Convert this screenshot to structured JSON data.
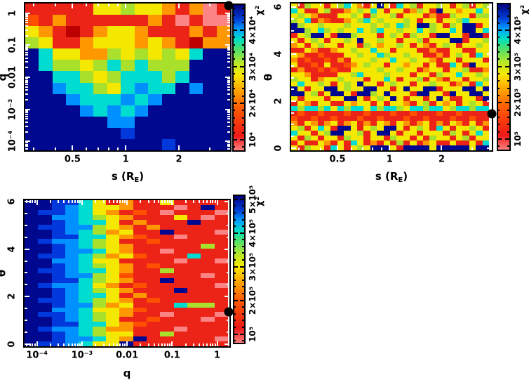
{
  "palette": {
    "0": "#000890",
    "1": "#0038DC",
    "2": "#0090FF",
    "3": "#00DCD0",
    "4": "#38E080",
    "5": "#A8E02C",
    "6": "#F4E800",
    "7": "#FF9800",
    "8": "#FF5000",
    "9": "#EC2418",
    "a": "#FC8484",
    "b": "#BC0000"
  },
  "palette_note": "grid cell characters index palette colors; red = low chi-squared, navy = high chi-squared",
  "colorbar_gradient": [
    [
      0.0,
      "#FC8080"
    ],
    [
      0.1,
      "#F01818"
    ],
    [
      0.3,
      "#FF6000"
    ],
    [
      0.42,
      "#FFA800"
    ],
    [
      0.52,
      "#F8E800"
    ],
    [
      0.6,
      "#B8E828"
    ],
    [
      0.7,
      "#48E070"
    ],
    [
      0.76,
      "#00E0C0"
    ],
    [
      0.83,
      "#00A0FF"
    ],
    [
      0.9,
      "#0040D8"
    ],
    [
      1.0,
      "#000080"
    ]
  ],
  "chart_data": [
    {
      "type": "heatmap",
      "id": "s-q",
      "x_axis": {
        "label_parts": {
          "pre": "s (R",
          "sub": "E",
          "post": ")"
        },
        "scale": "log",
        "min": 0.27,
        "max": 3.9,
        "ticks": [
          {
            "v": 0.5,
            "label": "0.5"
          },
          {
            "v": 1,
            "label": "1"
          },
          {
            "v": 2,
            "label": "2"
          }
        ]
      },
      "y_axis": {
        "label": "q",
        "scale": "log",
        "min": 5.3e-05,
        "max": 2.0,
        "ticks": [
          {
            "v": 1,
            "label": "1"
          },
          {
            "v": 0.1,
            "label": "0.1"
          },
          {
            "v": 0.01,
            "label": "0.01"
          },
          {
            "v": 0.001,
            "label": "10⁻³"
          },
          {
            "v": 0.0001,
            "label": "10⁻⁴"
          }
        ]
      },
      "colorbar": {
        "title": "χ²",
        "min": 7100,
        "max": 46900,
        "ticks": [
          {
            "v": 10000,
            "label": "10⁴"
          },
          {
            "v": 20000,
            "label": "2×10⁴"
          },
          {
            "v": 30000,
            "label": "3×10⁴"
          },
          {
            "v": 40000,
            "label": "4×10⁴"
          }
        ]
      },
      "marker": {
        "x_frac": 0.993,
        "y_frac": 0.014
      },
      "grid": {
        "cols": 15,
        "rows": 13,
        "cells": [
          "9999966566797a9",
          "89799999979a9aa",
          "679b97667999797",
          "569976667679b77",
          "036677565656300",
          "035565353555000",
          "003356533353000",
          "002335632330200",
          "000233323200000",
          "000023232000000",
          "000000220000000",
          "000000010000000",
          "000000000010000"
        ]
      }
    },
    {
      "type": "heatmap",
      "id": "s-theta",
      "x_axis": {
        "label_parts": {
          "pre": "s (R",
          "sub": "E",
          "post": ")"
        },
        "scale": "log",
        "min": 0.27,
        "max": 3.9,
        "ticks": [
          {
            "v": 0.5,
            "label": "0.5"
          },
          {
            "v": 1,
            "label": "1"
          },
          {
            "v": 2,
            "label": "2"
          }
        ]
      },
      "y_axis": {
        "label": "θ",
        "scale": "linear",
        "min": -0.09,
        "max": 6.15,
        "minor_step": 0.5,
        "ticks": [
          {
            "v": 0,
            "label": "0"
          },
          {
            "v": 2,
            "label": "2"
          },
          {
            "v": 4,
            "label": "4"
          },
          {
            "v": 6,
            "label": "6"
          }
        ]
      },
      "colorbar": {
        "title": "χ²",
        "min": 71000,
        "max": 472000,
        "ticks": [
          {
            "v": 100000,
            "label": "10⁵"
          },
          {
            "v": 200000,
            "label": "2×10⁵"
          },
          {
            "v": 300000,
            "label": "3×10⁵"
          },
          {
            "v": 400000,
            "label": "4×10⁵"
          }
        ]
      },
      "marker": {
        "x_frac": 1.0,
        "y_frac": 0.75
      },
      "grid": {
        "cols": 30,
        "rows": 30,
        "cells": [
          "695669653679606936596656965965",
          "369965997656369669756906676636",
          "656799966569566596669799566955",
          "563978997653656665696696653666",
          "056656665666565635600569560096",
          "005635656636536656636566360063",
          "965006900566696569566900669009",
          "696569665606656696659666009665",
          "769656696695676656967965696656",
          "996799766566366966699799669966",
          "679989996656635665669979656936",
          "798998979666566366566796696669",
          "699896998765669667669699369066",
          "979989899666656656697669665997",
          "667999966536665666966956636656",
          "566976656669663696659679669665",
          "636656965606696566966566976936",
          "069660065660066960660096660060",
          "006596006900560666900669066006",
          "696669660069656069669606996690",
          "967966996766969667965967696569",
          "353353635336353356335336533533",
          "989989998998999899899989989999",
          "899899899989989998998999899899",
          "796797697697967967976979679697",
          "659636900696560069656936966569",
          "366965006659600696696669569636",
          "695696695669669566969566965966",
          "969967969369796959697699699693",
          "695669369656000690000600000600"
        ]
      }
    },
    {
      "type": "heatmap",
      "id": "q-theta",
      "x_axis": {
        "label": "q",
        "scale": "log",
        "min": 5.3e-05,
        "max": 1.87,
        "ticks": [
          {
            "v": 0.0001,
            "label": "10⁻⁴"
          },
          {
            "v": 0.001,
            "label": "10⁻³"
          },
          {
            "v": 0.01,
            "label": "0.01"
          },
          {
            "v": 0.1,
            "label": "0.1"
          },
          {
            "v": 1,
            "label": "1"
          }
        ]
      },
      "y_axis": {
        "label": "θ",
        "scale": "linear",
        "min": -0.09,
        "max": 6.06,
        "minor_step": 0.5,
        "ticks": [
          {
            "v": 0,
            "label": "0"
          },
          {
            "v": 2,
            "label": "2"
          },
          {
            "v": 4,
            "label": "4"
          },
          {
            "v": 6,
            "label": "6"
          }
        ]
      },
      "colorbar": {
        "title": "χ²",
        "min": 74000,
        "max": 510000,
        "ticks": [
          {
            "v": 100000,
            "label": "10⁵"
          },
          {
            "v": 200000,
            "label": "2×10⁵"
          },
          {
            "v": 300000,
            "label": "3×10⁵"
          },
          {
            "v": 400000,
            "label": "4×10⁵"
          },
          {
            "v": 500000,
            "label": "5×10⁵"
          }
        ]
      },
      "marker": {
        "x_frac": 0.997,
        "y_frac": 0.765
      },
      "grid": {
        "cols": 15,
        "rows": 30,
        "cells": [
          "001136979969999",
          "00123667999a909",
          "0112367989a999a",
          "0022356799969a9",
          "001233697999099",
          "011225679799999",
          "00123576990999a",
          "00113367899a999",
          "012235699899999",
          "001235679999959",
          "0012236799a9999",
          "011235768999399",
          "00223669999a99a",
          "001235679899999",
          "011233679959999",
          "0012256899999a9",
          "001135679909999",
          "01223679899999a",
          "001235679990999",
          "001233697999999",
          "011235679899999",
          "001225769993559",
          "002236678999999",
          "0112356799a999a",
          "001235699899 9a9",
          "001133678999999",
          "01223577999a999",
          "001235669959999",
          "0012236709 9999a",
          "011236609999999"
        ]
      }
    }
  ]
}
